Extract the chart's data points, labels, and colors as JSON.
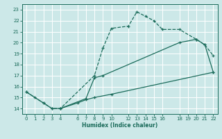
{
  "xlabel": "Humidex (Indice chaleur)",
  "xlim": [
    -0.5,
    22.5
  ],
  "ylim": [
    13.5,
    23.5
  ],
  "xticks": [
    0,
    1,
    2,
    3,
    4,
    6,
    7,
    8,
    9,
    10,
    12,
    13,
    14,
    15,
    16,
    18,
    19,
    20,
    21,
    22
  ],
  "yticks": [
    14,
    15,
    16,
    17,
    18,
    19,
    20,
    21,
    22,
    23
  ],
  "bg_color": "#cce8e8",
  "line_color": "#1a6b5a",
  "line1_x": [
    0,
    1,
    2,
    3,
    4,
    8,
    9,
    10,
    12,
    13,
    14,
    15,
    16,
    18,
    20,
    21,
    22
  ],
  "line1_y": [
    15.5,
    15.0,
    14.5,
    14.0,
    14.0,
    17.0,
    19.5,
    21.3,
    21.5,
    22.8,
    22.4,
    22.0,
    21.2,
    21.2,
    20.3,
    19.8,
    18.8
  ],
  "line2_x": [
    0,
    2,
    3,
    4,
    7,
    8,
    9,
    18,
    20,
    21,
    22
  ],
  "line2_y": [
    15.5,
    14.5,
    14.0,
    14.0,
    14.9,
    16.8,
    17.0,
    20.0,
    20.3,
    19.8,
    17.3
  ],
  "line3_x": [
    4,
    6,
    7,
    8,
    10,
    22
  ],
  "line3_y": [
    14.0,
    14.5,
    14.8,
    15.0,
    15.3,
    17.3
  ]
}
